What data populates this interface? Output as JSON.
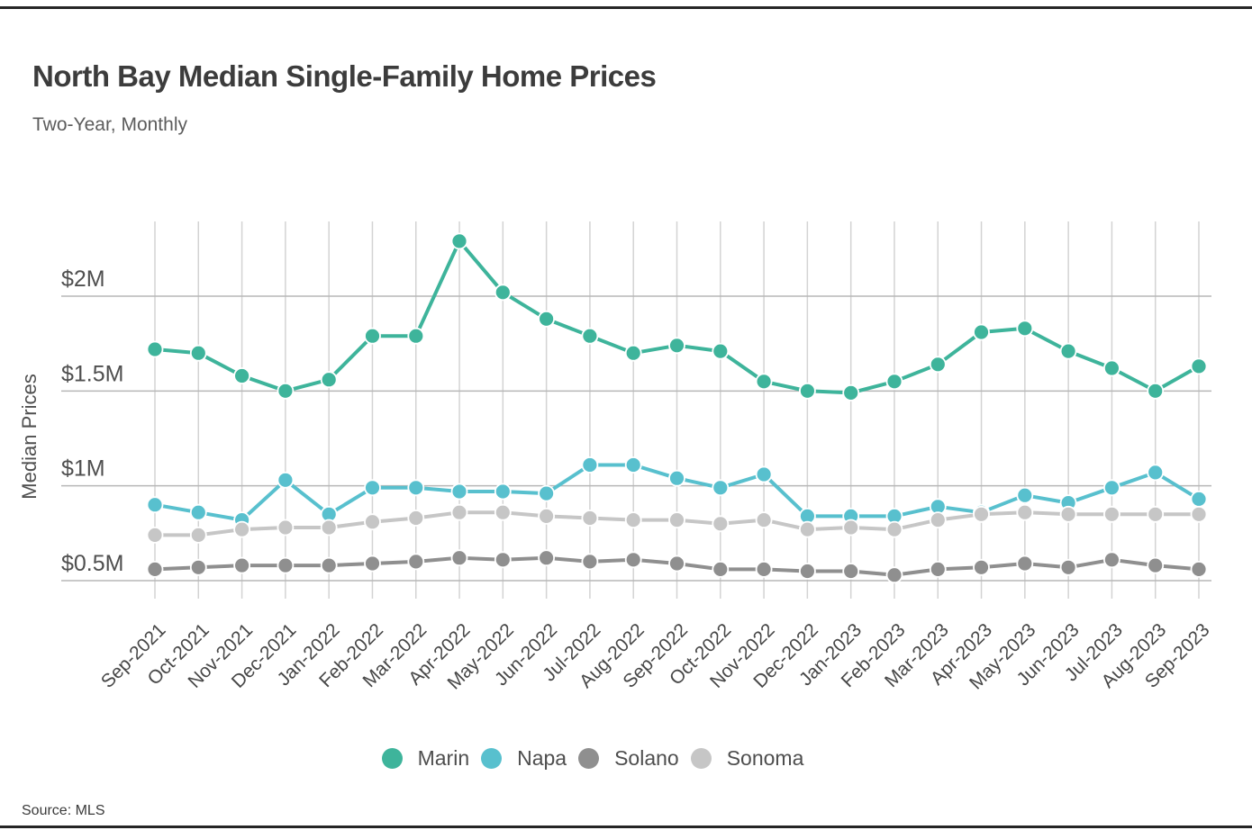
{
  "page": {
    "title": "North Bay Median Single-Family Home Prices",
    "subtitle": "Two-Year, Monthly",
    "source_label": "Source: MLS"
  },
  "chart_data": {
    "type": "line",
    "title": "North Bay Median Single-Family Home Prices",
    "subtitle": "Two-Year, Monthly",
    "xlabel": "",
    "ylabel": "Median Prices",
    "unit": "$ millions",
    "x_categories": [
      "Sep-2021",
      "Oct-2021",
      "Nov-2021",
      "Dec-2021",
      "Jan-2022",
      "Feb-2022",
      "Mar-2022",
      "Apr-2022",
      "May-2022",
      "Jun-2022",
      "Jul-2022",
      "Aug-2022",
      "Sep-2022",
      "Oct-2022",
      "Nov-2022",
      "Dec-2022",
      "Jan-2023",
      "Feb-2023",
      "Mar-2023",
      "Apr-2023",
      "May-2023",
      "Jun-2023",
      "Jul-2023",
      "Aug-2023",
      "Sep-2023"
    ],
    "y_ticks": [
      {
        "value": 0.5,
        "label": "$0.5M"
      },
      {
        "value": 1.0,
        "label": "$1M"
      },
      {
        "value": 1.5,
        "label": "$1.5M"
      },
      {
        "value": 2.0,
        "label": "$2M"
      }
    ],
    "ylim": [
      0.42,
      2.42
    ],
    "grid": "both",
    "x_tick_rotation": -45,
    "legend_position": "bottom",
    "series": [
      {
        "name": "Marin",
        "color": "#3eb49b",
        "values": [
          1.72,
          1.7,
          1.58,
          1.5,
          1.56,
          1.79,
          1.79,
          2.29,
          2.02,
          1.88,
          1.79,
          1.7,
          1.74,
          1.71,
          1.55,
          1.5,
          1.49,
          1.55,
          1.64,
          1.81,
          1.83,
          1.71,
          1.62,
          1.5,
          1.63
        ]
      },
      {
        "name": "Napa",
        "color": "#58c0ce",
        "values": [
          0.9,
          0.86,
          0.82,
          1.03,
          0.85,
          0.99,
          0.99,
          0.97,
          0.97,
          0.96,
          1.11,
          1.11,
          1.04,
          0.99,
          1.06,
          0.84,
          0.84,
          0.84,
          0.89,
          0.86,
          0.95,
          0.91,
          0.99,
          1.07,
          0.93
        ]
      },
      {
        "name": "Solano",
        "color": "#8f8f8f",
        "values": [
          0.56,
          0.57,
          0.58,
          0.58,
          0.58,
          0.59,
          0.6,
          0.62,
          0.61,
          0.62,
          0.6,
          0.61,
          0.59,
          0.56,
          0.56,
          0.55,
          0.55,
          0.53,
          0.56,
          0.57,
          0.59,
          0.57,
          0.61,
          0.58,
          0.56
        ]
      },
      {
        "name": "Sonoma",
        "color": "#c6c6c6",
        "values": [
          0.74,
          0.74,
          0.77,
          0.78,
          0.78,
          0.81,
          0.83,
          0.86,
          0.86,
          0.84,
          0.83,
          0.82,
          0.82,
          0.8,
          0.82,
          0.77,
          0.78,
          0.77,
          0.82,
          0.85,
          0.86,
          0.85,
          0.85,
          0.85,
          0.85
        ]
      }
    ],
    "style": {
      "vertical_gridline_color": "#d3d3d3",
      "horizontal_gridline_color": "#b7b7b7",
      "marker_radius": 8.5,
      "line_width": 4
    }
  }
}
